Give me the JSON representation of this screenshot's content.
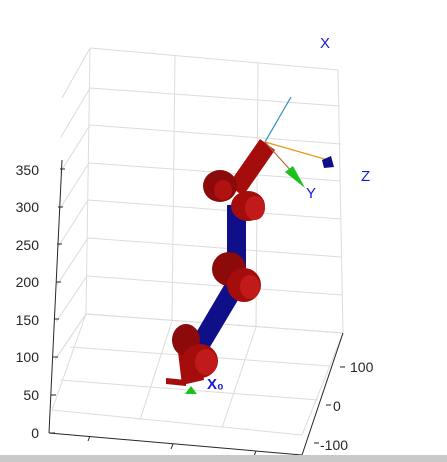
{
  "figure": {
    "z_ticks": [
      "0",
      "50",
      "100",
      "150",
      "200",
      "250",
      "300",
      "350"
    ],
    "y_ticks": [
      "100",
      "0",
      "-100"
    ],
    "frame_labels": {
      "x": "X",
      "y": "Y",
      "z": "Z",
      "base": "X₀"
    }
  },
  "colors": {
    "link_red": "#a50d0d",
    "link_blue": "#0f0f8a",
    "grid": "#dcdcdc",
    "axis": "#262626",
    "label_blue": "#1a1ad6",
    "arrow_green": "#1bc21b",
    "frame_cyan": "#2f8fc6",
    "frame_orange": "#e39a1a"
  }
}
